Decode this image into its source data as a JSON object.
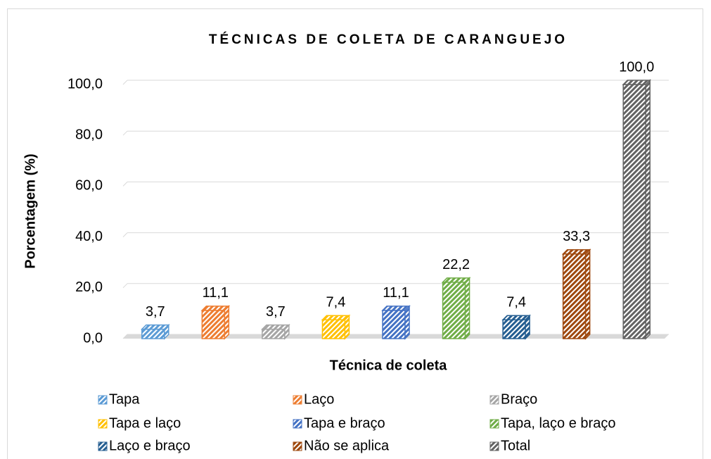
{
  "chart_data": {
    "type": "bar",
    "title": "TÉCNICAS DE COLETA DE CARANGUEJO",
    "xlabel": "Técnica de coleta",
    "ylabel": "Porcentagem (%)",
    "categories": [
      "Tapa",
      "Laço",
      "Braço",
      "Tapa e laço",
      "Tapa e braço",
      "Tapa, laço e braço",
      "Laço e braço",
      "Não se aplica",
      "Total"
    ],
    "values": [
      3.7,
      11.1,
      3.7,
      7.4,
      11.1,
      22.2,
      7.4,
      33.3,
      100
    ],
    "value_labels": [
      "3,7",
      "11,1",
      "3,7",
      "7,4",
      "11,1",
      "22,2",
      "7,4",
      "33,3",
      "100,0"
    ],
    "colors": [
      "#5b9bd5",
      "#ed7d31",
      "#a5a5a5",
      "#ffc000",
      "#4472c4",
      "#70ad47",
      "#255e91",
      "#9e480e",
      "#636363"
    ],
    "ylim": [
      0,
      100
    ],
    "yticks": [
      {
        "value": 0,
        "label": "0,0"
      },
      {
        "value": 20,
        "label": "20,0"
      },
      {
        "value": 40,
        "label": "40,0"
      },
      {
        "value": 60,
        "label": "60,0"
      },
      {
        "value": 80,
        "label": "80,0"
      },
      {
        "value": 100,
        "label": "100,0"
      }
    ],
    "grid": true,
    "legend": "bottom"
  }
}
